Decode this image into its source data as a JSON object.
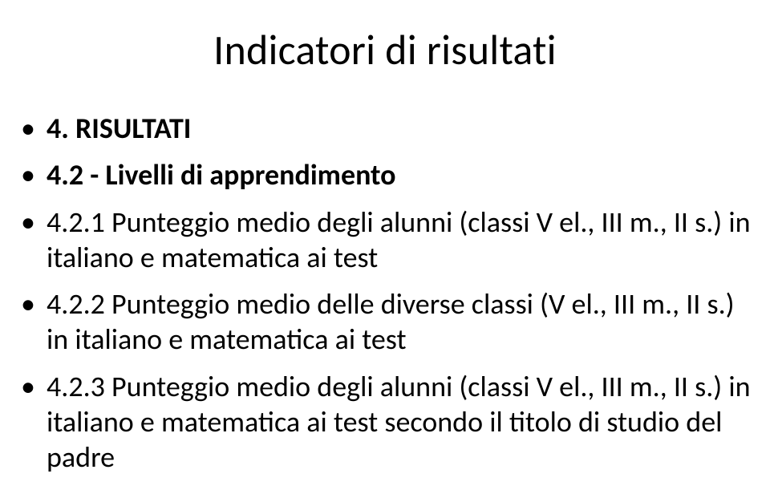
{
  "title": "Indicatori di risultati",
  "bullets": [
    {
      "text": "4. RISULTATI",
      "bold": true
    },
    {
      "text": "4.2 - Livelli di apprendimento",
      "bold": true
    },
    {
      "text": "4.2.1 Punteggio medio degli alunni (classi V el., III m., II s.) in italiano e matematica ai test",
      "bold": false
    },
    {
      "text": "4.2.2 Punteggio medio delle diverse classi (V el., III m., II s.) in italiano e matematica ai test",
      "bold": false
    },
    {
      "text": "4.2.3 Punteggio medio degli alunni (classi V el., III m., II s.) in italiano e matematica ai test secondo il titolo di studio del padre",
      "bold": false
    }
  ]
}
